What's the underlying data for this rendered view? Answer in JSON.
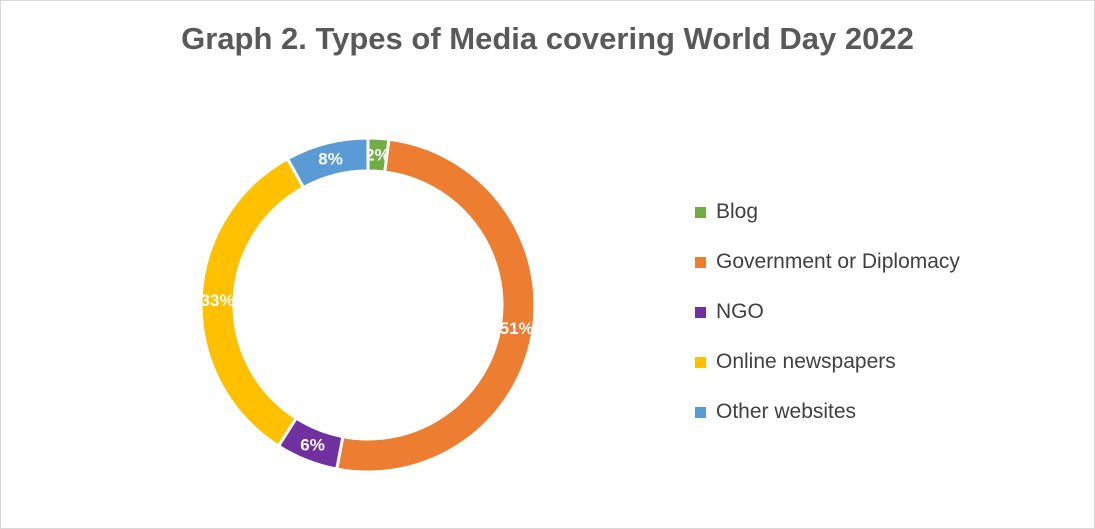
{
  "chart_data": {
    "type": "pie",
    "variant": "donut",
    "title": "Graph 2. Types of Media covering World Day 2022",
    "legend_position": "right",
    "categories": [
      "Blog",
      "Government or Diplomacy",
      "NGO",
      "Online newspapers",
      "Other websites"
    ],
    "values": [
      2,
      51,
      6,
      33,
      8
    ],
    "labels": [
      "2%",
      "51%",
      "6%",
      "33%",
      "8%"
    ],
    "unit": "%",
    "colors": [
      "#70ad47",
      "#ed7d31",
      "#7030a0",
      "#ffc000",
      "#5b9bd5"
    ]
  }
}
